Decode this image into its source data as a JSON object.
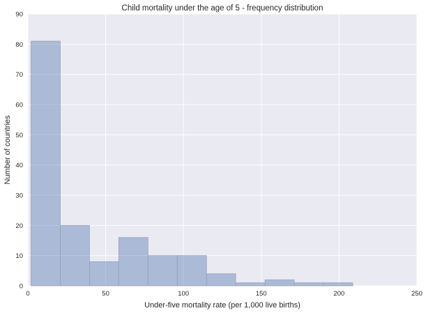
{
  "chart_data": {
    "type": "bar",
    "subtype": "histogram",
    "title": "Child mortality under the age of 5 - frequency distribution",
    "xlabel": "Under-five mortality rate (per 1,000 live births)",
    "ylabel": "Number of countries",
    "xlim": [
      0,
      250
    ],
    "ylim": [
      0,
      90
    ],
    "xticks": [
      "0",
      "50",
      "100",
      "150",
      "200",
      "250"
    ],
    "yticks": [
      "0",
      "10",
      "20",
      "30",
      "40",
      "50",
      "60",
      "70",
      "80",
      "90"
    ],
    "bins": [
      {
        "start": 2,
        "end": 20.8,
        "count": 81
      },
      {
        "start": 20.8,
        "end": 39.6,
        "count": 20
      },
      {
        "start": 39.6,
        "end": 58.4,
        "count": 8
      },
      {
        "start": 58.4,
        "end": 77.2,
        "count": 16
      },
      {
        "start": 77.2,
        "end": 96.0,
        "count": 10
      },
      {
        "start": 96.0,
        "end": 114.8,
        "count": 10
      },
      {
        "start": 114.8,
        "end": 133.6,
        "count": 4
      },
      {
        "start": 133.6,
        "end": 152.4,
        "count": 1
      },
      {
        "start": 152.4,
        "end": 171.2,
        "count": 2
      },
      {
        "start": 171.2,
        "end": 190.0,
        "count": 1
      },
      {
        "start": 190.0,
        "end": 208.8,
        "count": 1
      }
    ],
    "grid": true,
    "colors": {
      "plot_background": "#eaeaf2",
      "grid": "#ffffff",
      "bar_fill": "#4c72b0",
      "bar_opacity": 0.4,
      "text": "#262626"
    }
  }
}
